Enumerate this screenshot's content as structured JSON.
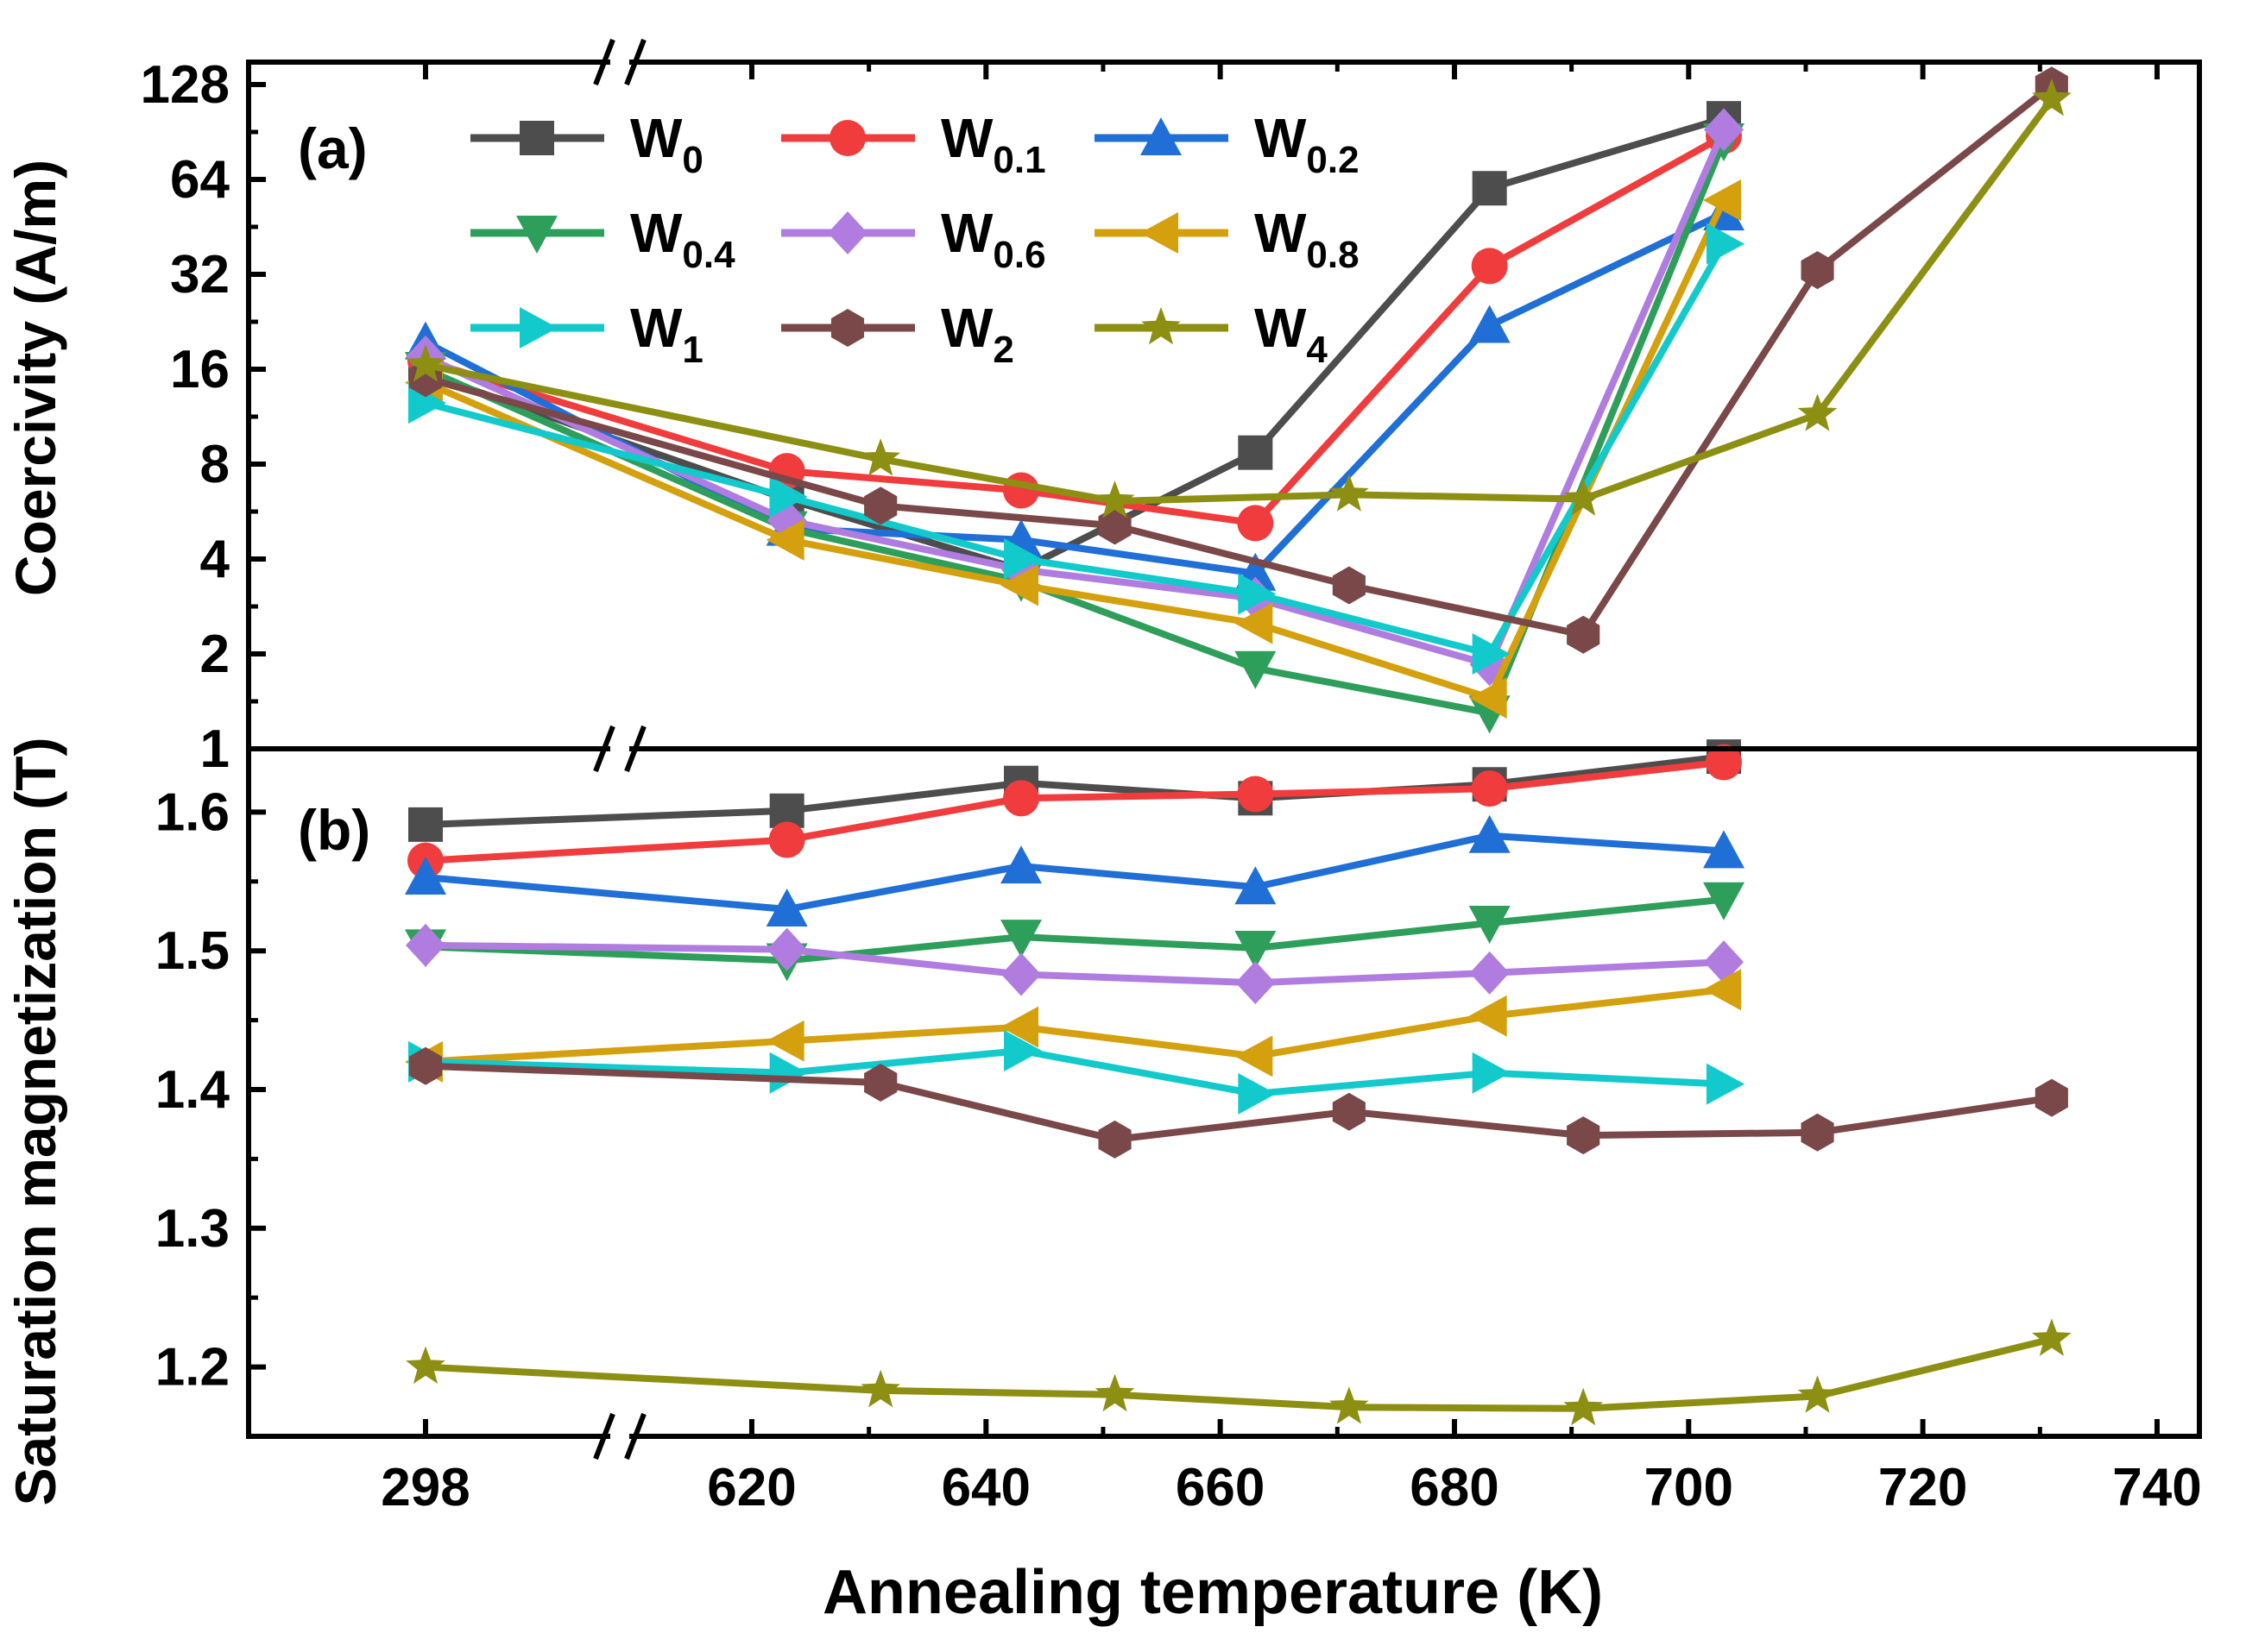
{
  "chart_data": {
    "type": "line",
    "xlabel": "Annealing temperature (K)",
    "x_ticks": [
      "298",
      "620",
      "640",
      "660",
      "680",
      "700",
      "720",
      "740"
    ],
    "x_axis_break": "between 298 and 620",
    "x_positions_note": "x values are annealing temperatures in K; 298 K shown left of the axis break",
    "legend": [
      {
        "key": "W0",
        "base": "W",
        "sub": "0",
        "color": "#4d4d4d",
        "marker": "square"
      },
      {
        "key": "W0.1",
        "base": "W",
        "sub": "0.1",
        "color": "#f03c3c",
        "marker": "circle"
      },
      {
        "key": "W0.2",
        "base": "W",
        "sub": "0.2",
        "color": "#1f6fd6",
        "marker": "triangle-up"
      },
      {
        "key": "W0.4",
        "base": "W",
        "sub": "0.4",
        "color": "#2e9e5b",
        "marker": "triangle-down"
      },
      {
        "key": "W0.6",
        "base": "W",
        "sub": "0.6",
        "color": "#b07ce0",
        "marker": "diamond"
      },
      {
        "key": "W0.8",
        "base": "W",
        "sub": "0.8",
        "color": "#d4a00e",
        "marker": "triangle-left"
      },
      {
        "key": "W1",
        "base": "W",
        "sub": "1",
        "color": "#12c9cc",
        "marker": "triangle-right"
      },
      {
        "key": "W2",
        "base": "W",
        "sub": "2",
        "color": "#7a4848",
        "marker": "hexagon"
      },
      {
        "key": "W4",
        "base": "W",
        "sub": "4",
        "color": "#8d8f13",
        "marker": "star"
      }
    ],
    "panels": [
      {
        "label": "(a)",
        "ylabel": "Coercivity (A/m)",
        "yscale": "log2",
        "ylim": [
          1,
          160
        ],
        "y_ticks": [
          "1",
          "2",
          "4",
          "8",
          "16",
          "32",
          "64",
          "128"
        ],
        "series": [
          {
            "key": "W0",
            "points": [
              [
                298,
                15.5
              ],
              [
                623,
                6.2
              ],
              [
                643,
                3.7
              ],
              [
                663,
                8.7
              ],
              [
                683,
                60
              ],
              [
                703,
                100
              ]
            ]
          },
          {
            "key": "W0.1",
            "points": [
              [
                298,
                17
              ],
              [
                623,
                7.6
              ],
              [
                643,
                6.6
              ],
              [
                663,
                5.2
              ],
              [
                683,
                34
              ],
              [
                703,
                88
              ]
            ]
          },
          {
            "key": "W0.2",
            "points": [
              [
                298,
                19.5
              ],
              [
                623,
                5.0
              ],
              [
                643,
                4.6
              ],
              [
                663,
                3.6
              ],
              [
                683,
                22
              ],
              [
                703,
                50
              ]
            ]
          },
          {
            "key": "W0.4",
            "points": [
              [
                298,
                16
              ],
              [
                623,
                5.0
              ],
              [
                643,
                3.4
              ],
              [
                663,
                1.8
              ],
              [
                683,
                1.3
              ],
              [
                703,
                85
              ]
            ]
          },
          {
            "key": "W0.6",
            "points": [
              [
                298,
                17.5
              ],
              [
                623,
                5.3
              ],
              [
                643,
                3.7
              ],
              [
                663,
                3.0
              ],
              [
                683,
                1.85
              ],
              [
                703,
                92
              ]
            ]
          },
          {
            "key": "W0.8",
            "points": [
              [
                298,
                14.5
              ],
              [
                623,
                4.6
              ],
              [
                643,
                3.3
              ],
              [
                663,
                2.5
              ],
              [
                683,
                1.45
              ],
              [
                703,
                55
              ]
            ]
          },
          {
            "key": "W1",
            "points": [
              [
                298,
                12.5
              ],
              [
                623,
                6.3
              ],
              [
                643,
                4.0
              ],
              [
                663,
                3.1
              ],
              [
                683,
                2.0
              ],
              [
                703,
                40
              ]
            ]
          },
          {
            "key": "W2",
            "points": [
              [
                298,
                15
              ],
              [
                631,
                5.9
              ],
              [
                651,
                5.1
              ],
              [
                671,
                3.3
              ],
              [
                691,
                2.3
              ],
              [
                711,
                33
              ],
              [
                731,
                127
              ]
            ]
          },
          {
            "key": "W4",
            "points": [
              [
                298,
                16.5
              ],
              [
                631,
                8.3
              ],
              [
                651,
                6.1
              ],
              [
                671,
                6.4
              ],
              [
                691,
                6.2
              ],
              [
                711,
                11.5
              ],
              [
                731,
                115
              ]
            ]
          }
        ]
      },
      {
        "label": "(b)",
        "ylabel": "Saturation magnetization (T)",
        "yscale": "linear",
        "ylim": [
          1.15,
          1.65
        ],
        "y_ticks": [
          "1.2",
          "1.3",
          "1.4",
          "1.5",
          "1.6"
        ],
        "series": [
          {
            "key": "W0",
            "points": [
              [
                298,
                1.591
              ],
              [
                623,
                1.601
              ],
              [
                643,
                1.621
              ],
              [
                663,
                1.61
              ],
              [
                683,
                1.62
              ],
              [
                703,
                1.64
              ]
            ]
          },
          {
            "key": "W0.1",
            "points": [
              [
                298,
                1.565
              ],
              [
                623,
                1.58
              ],
              [
                643,
                1.61
              ],
              [
                663,
                1.613
              ],
              [
                683,
                1.617
              ],
              [
                703,
                1.636
              ]
            ]
          },
          {
            "key": "W0.2",
            "points": [
              [
                298,
                1.553
              ],
              [
                623,
                1.53
              ],
              [
                643,
                1.561
              ],
              [
                663,
                1.546
              ],
              [
                683,
                1.583
              ],
              [
                703,
                1.572
              ]
            ]
          },
          {
            "key": "W0.4",
            "points": [
              [
                298,
                1.503
              ],
              [
                623,
                1.493
              ],
              [
                643,
                1.51
              ],
              [
                663,
                1.502
              ],
              [
                683,
                1.52
              ],
              [
                703,
                1.537
              ]
            ]
          },
          {
            "key": "W0.6",
            "points": [
              [
                298,
                1.504
              ],
              [
                623,
                1.501
              ],
              [
                643,
                1.483
              ],
              [
                663,
                1.477
              ],
              [
                683,
                1.484
              ],
              [
                703,
                1.492
              ]
            ]
          },
          {
            "key": "W0.8",
            "points": [
              [
                298,
                1.42
              ],
              [
                623,
                1.435
              ],
              [
                643,
                1.445
              ],
              [
                663,
                1.424
              ],
              [
                683,
                1.453
              ],
              [
                703,
                1.472
              ]
            ]
          },
          {
            "key": "W1",
            "points": [
              [
                298,
                1.42
              ],
              [
                623,
                1.412
              ],
              [
                643,
                1.428
              ],
              [
                663,
                1.397
              ],
              [
                683,
                1.412
              ],
              [
                703,
                1.404
              ]
            ]
          },
          {
            "key": "W2",
            "points": [
              [
                298,
                1.417
              ],
              [
                631,
                1.405
              ],
              [
                651,
                1.364
              ],
              [
                671,
                1.384
              ],
              [
                691,
                1.367
              ],
              [
                711,
                1.369
              ],
              [
                731,
                1.394
              ]
            ]
          },
          {
            "key": "W4",
            "points": [
              [
                298,
                1.2
              ],
              [
                631,
                1.183
              ],
              [
                651,
                1.18
              ],
              [
                671,
                1.171
              ],
              [
                691,
                1.17
              ],
              [
                711,
                1.179
              ],
              [
                731,
                1.22
              ]
            ]
          }
        ]
      }
    ]
  }
}
